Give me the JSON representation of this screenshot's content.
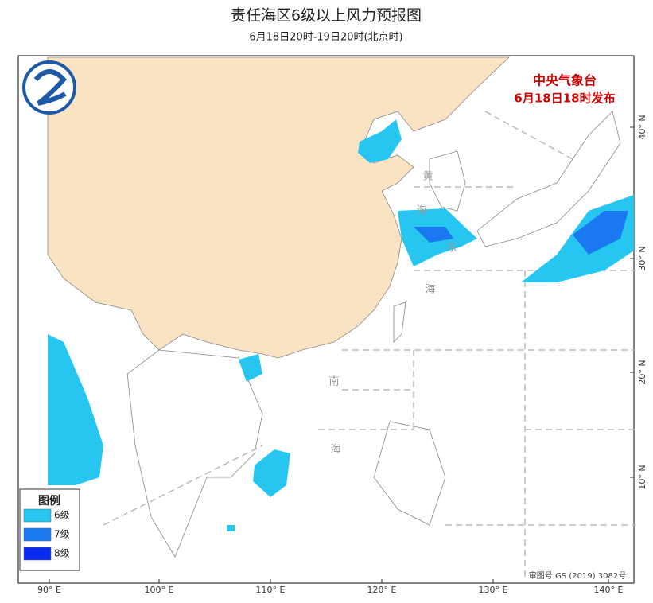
{
  "header": {
    "title": "责任海区6级以上风力预报图",
    "subtitle": "6月18日20时-19日20时(北京时)"
  },
  "issuer": {
    "name": "中央气象台",
    "time": "6月18日18时发布"
  },
  "legend": {
    "title": "图例",
    "items": [
      {
        "label": "6级",
        "color": "#26c6f0"
      },
      {
        "label": "7级",
        "color": "#1a78f0"
      },
      {
        "label": "8级",
        "color": "#0a2af0"
      }
    ]
  },
  "sea_labels": [
    "黄",
    "海",
    "东",
    "海",
    "南",
    "海"
  ],
  "lon_labels": [
    "90° E",
    "100° E",
    "110° E",
    "120° E",
    "130° E",
    "140° E"
  ],
  "lat_labels": [
    "40° N",
    "30° N",
    "20° N",
    "10° N"
  ],
  "approval": "审图号:GS (2019) 3082号"
}
